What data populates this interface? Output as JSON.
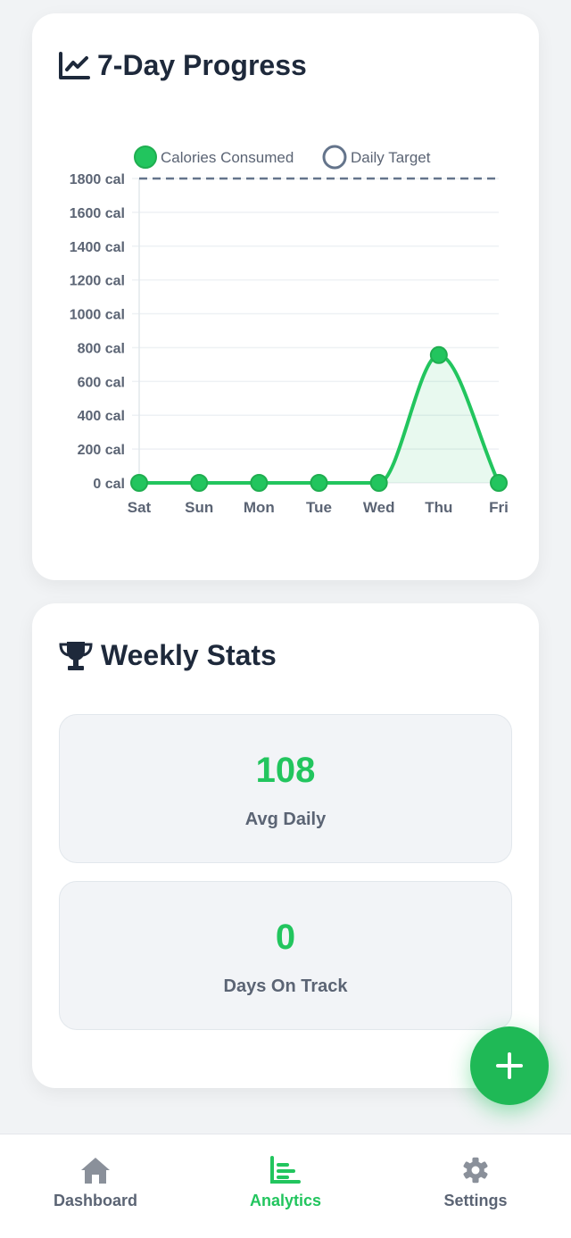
{
  "progress_card": {
    "title": "7-Day Progress",
    "icon": "chart-line-icon"
  },
  "chart_data": {
    "type": "line",
    "categories": [
      "Sat",
      "Sun",
      "Mon",
      "Tue",
      "Wed",
      "Thu",
      "Fri"
    ],
    "series": [
      {
        "name": "Calories Consumed",
        "values": [
          0,
          0,
          0,
          0,
          0,
          756,
          0
        ],
        "color": "#22c55e",
        "fill": true
      },
      {
        "name": "Daily Target",
        "values": [
          1800,
          1800,
          1800,
          1800,
          1800,
          1800,
          1800
        ],
        "color": "#64748b",
        "dashed": true
      }
    ],
    "y_ticks": [
      "0 cal",
      "200 cal",
      "400 cal",
      "600 cal",
      "800 cal",
      "1000 cal",
      "1200 cal",
      "1400 cal",
      "1600 cal",
      "1800 cal"
    ],
    "ylim": [
      0,
      1800
    ],
    "grid": true,
    "legend_position": "top"
  },
  "stats_card": {
    "title": "Weekly Stats",
    "icon": "trophy-icon",
    "stats": [
      {
        "value": "108",
        "label": "Avg Daily"
      },
      {
        "value": "0",
        "label": "Days On Track"
      }
    ]
  },
  "fab": {
    "icon": "plus-icon"
  },
  "nav": {
    "items": [
      {
        "label": "Dashboard",
        "icon": "home-icon",
        "active": false
      },
      {
        "label": "Analytics",
        "icon": "chart-bar-icon",
        "active": true
      },
      {
        "label": "Settings",
        "icon": "gear-icon",
        "active": false
      }
    ]
  },
  "colors": {
    "accent": "#22c55e",
    "text": "#1e293b",
    "muted": "#5b6474"
  }
}
